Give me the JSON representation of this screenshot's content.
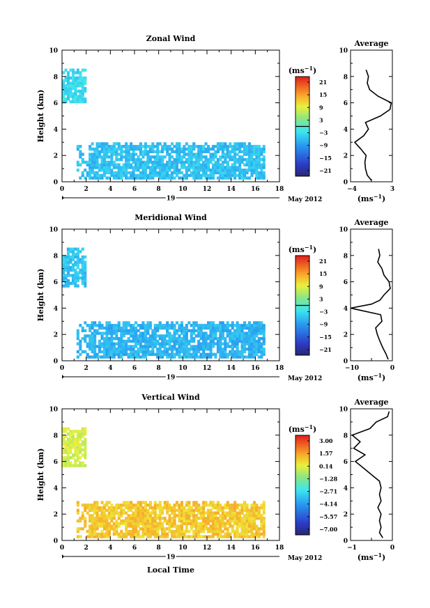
{
  "figure": {
    "x_axis_label": "Local Time",
    "date_label": "May 2012",
    "day_label": "19",
    "unit_label": "(ms",
    "unit_exp": "−1"
  },
  "panels": [
    {
      "key": "zonal",
      "title": "Zonal Wind",
      "ylabel": "Height (km)",
      "avg_title": "Average",
      "avg_xlabel": "(ms",
      "avg_xexp": "−1",
      "colorbar_ticks": [
        "21",
        "15",
        "9",
        "3",
        "−3",
        "−9",
        "−15",
        "−21"
      ],
      "colorbar_divider_index": 4,
      "avg_xticks": [
        "−4",
        "3"
      ]
    },
    {
      "key": "meridional",
      "title": "Meridional Wind",
      "ylabel": "Height (km)",
      "avg_title": "Average",
      "avg_xlabel": "(ms",
      "avg_xexp": "−1",
      "colorbar_ticks": [
        "21",
        "15",
        "9",
        "3",
        "−3",
        "−9",
        "−15",
        "−21"
      ],
      "colorbar_divider_index": 4,
      "avg_xticks": [
        "−10",
        "0"
      ]
    },
    {
      "key": "vertical",
      "title": "Vertical Wind",
      "ylabel": "Height (km)",
      "avg_title": "Average",
      "avg_xlabel": "(ms",
      "avg_xexp": "−1",
      "colorbar_ticks": [
        "3.00",
        "1.57",
        "0.14",
        "−1.28",
        "−2.71",
        "−4.14",
        "−5.57",
        "−7.00"
      ],
      "colorbar_divider_index": -1,
      "avg_xticks": [
        "−1",
        "0"
      ]
    }
  ],
  "chart_data": [
    {
      "type": "heatmap",
      "title": "Zonal Wind",
      "xlabel": "Local Time",
      "ylabel": "Height (km)",
      "xlim": [
        0,
        18
      ],
      "ylim": [
        0,
        10
      ],
      "xticks": [
        0,
        2,
        4,
        6,
        8,
        10,
        12,
        14,
        16,
        18
      ],
      "yticks": [
        0,
        2,
        4,
        6,
        8,
        10
      ],
      "colorbar": {
        "label": "(ms−1)",
        "range": [
          -21,
          21
        ],
        "ticks": [
          21,
          15,
          9,
          3,
          -3,
          -9,
          -15,
          -21
        ]
      },
      "regions": [
        {
          "x": [
            0,
            1.8
          ],
          "y": [
            6.0,
            8.6
          ],
          "value": -3
        },
        {
          "x": [
            1.2,
            18
          ],
          "y": [
            0.2,
            3.0
          ],
          "value": -5
        }
      ],
      "average_profile": {
        "xlim": [
          -4,
          3
        ],
        "height": [
          0.1,
          0.5,
          1.0,
          1.5,
          2.0,
          2.5,
          3.0,
          3.5,
          4.0,
          4.5,
          5.0,
          5.5,
          6.0,
          6.5,
          7.0,
          7.5,
          8.0,
          8.5
        ],
        "value": [
          -0.5,
          -1.2,
          -1.5,
          -1.6,
          -1.4,
          -2.3,
          -3.3,
          -1.8,
          -1.0,
          -1.5,
          1.0,
          2.6,
          2.8,
          0.6,
          -0.8,
          -1.2,
          -1.0,
          -1.4
        ]
      }
    },
    {
      "type": "heatmap",
      "title": "Meridional Wind",
      "xlabel": "Local Time",
      "ylabel": "Height (km)",
      "xlim": [
        0,
        18
      ],
      "ylim": [
        0,
        10
      ],
      "xticks": [
        0,
        2,
        4,
        6,
        8,
        10,
        12,
        14,
        16,
        18
      ],
      "yticks": [
        0,
        2,
        4,
        6,
        8,
        10
      ],
      "colorbar": {
        "label": "(ms−1)",
        "range": [
          -21,
          21
        ],
        "ticks": [
          21,
          15,
          9,
          3,
          -3,
          -9,
          -15,
          -21
        ]
      },
      "regions": [
        {
          "x": [
            0,
            1.8
          ],
          "y": [
            5.6,
            8.6
          ],
          "value": -5
        },
        {
          "x": [
            1.2,
            18
          ],
          "y": [
            0.2,
            3.0
          ],
          "value": -6
        }
      ],
      "average_profile": {
        "xlim": [
          -10,
          0
        ],
        "height": [
          0.1,
          0.5,
          1.0,
          1.5,
          2.0,
          2.5,
          3.0,
          3.5,
          4.0,
          4.3,
          4.6,
          5.0,
          5.5,
          6.0,
          6.5,
          7.0,
          7.5,
          8.0,
          8.5
        ],
        "value": [
          -1.0,
          -1.5,
          -2.3,
          -3.0,
          -3.6,
          -4.0,
          -2.5,
          -2.8,
          -10.0,
          -5.0,
          -3.0,
          -2.0,
          -0.5,
          -0.8,
          -2.0,
          -2.5,
          -3.5,
          -3.0,
          -3.3
        ]
      }
    },
    {
      "type": "heatmap",
      "title": "Vertical Wind",
      "xlabel": "Local Time",
      "ylabel": "Height (km)",
      "xlim": [
        0,
        18
      ],
      "ylim": [
        0,
        10
      ],
      "xticks": [
        0,
        2,
        4,
        6,
        8,
        10,
        12,
        14,
        16,
        18
      ],
      "yticks": [
        0,
        2,
        4,
        6,
        8,
        10
      ],
      "colorbar": {
        "label": "(ms−1)",
        "range": [
          -7.0,
          3.0
        ],
        "ticks": [
          3.0,
          1.57,
          0.14,
          -1.28,
          -2.71,
          -4.14,
          -5.57,
          -7.0
        ]
      },
      "regions": [
        {
          "x": [
            0,
            1.8
          ],
          "y": [
            5.6,
            8.6
          ],
          "value": -0.3
        },
        {
          "x": [
            1.2,
            18
          ],
          "y": [
            0.2,
            3.0
          ],
          "value": 0.6
        }
      ],
      "average_profile": {
        "xlim": [
          -1,
          0.3
        ],
        "height": [
          0.2,
          0.6,
          1.0,
          1.5,
          2.0,
          2.5,
          3.0,
          3.5,
          4.0,
          4.5,
          5.0,
          5.5,
          6.0,
          6.5,
          7.0,
          7.5,
          8.0,
          8.5,
          9.0,
          9.4,
          9.8
        ],
        "value": [
          0.0,
          -0.1,
          -0.05,
          -0.1,
          -0.05,
          -0.15,
          -0.05,
          -0.1,
          -0.05,
          -0.1,
          -0.35,
          -0.6,
          -0.85,
          -0.55,
          -0.9,
          -0.7,
          -0.95,
          -0.4,
          -0.2,
          0.15,
          0.2
        ]
      }
    }
  ]
}
